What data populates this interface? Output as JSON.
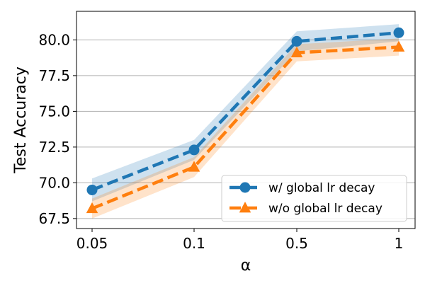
{
  "chart_data": {
    "type": "line",
    "title": "",
    "xlabel": "α",
    "ylabel": "Test Accuracy",
    "categories": [
      "0.05",
      "0.1",
      "0.5",
      "1"
    ],
    "ylim": [
      66.8,
      82.0
    ],
    "yticks": [
      "67.5",
      "70.0",
      "72.5",
      "75.0",
      "77.5",
      "80.0"
    ],
    "grid": "horizontal",
    "legend_position": "lower-right",
    "series": [
      {
        "name": "w/ global lr decay",
        "values": [
          69.5,
          72.3,
          79.9,
          80.5
        ],
        "band_lower": [
          68.7,
          71.6,
          79.2,
          79.9
        ],
        "band_upper": [
          70.3,
          73.0,
          80.6,
          81.1
        ],
        "color": "#1f77b4",
        "marker": "circle"
      },
      {
        "name": "w/o global lr decay",
        "values": [
          68.2,
          71.1,
          79.1,
          79.5
        ],
        "band_lower": [
          67.5,
          70.4,
          78.5,
          78.9
        ],
        "band_upper": [
          68.9,
          71.8,
          79.7,
          80.1
        ],
        "color": "#ff7f0e",
        "marker": "triangle"
      }
    ]
  }
}
